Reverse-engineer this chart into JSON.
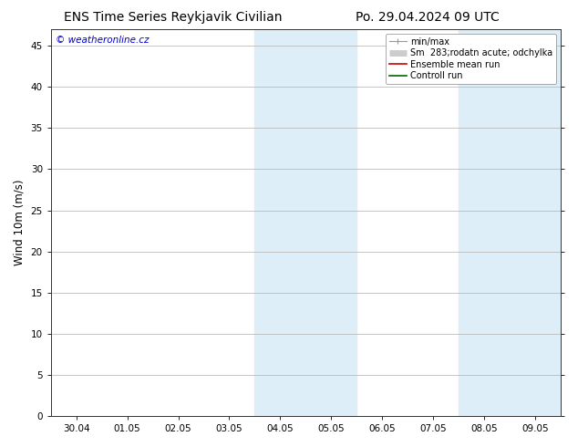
{
  "title_left": "ENS Time Series Reykjavik Civilian",
  "title_right": "Po. 29.04.2024 09 UTC",
  "ylabel": "Wind 10m (m/s)",
  "watermark": "© weatheronline.cz",
  "watermark_color": "#0000cc",
  "ylim": [
    0,
    47
  ],
  "yticks": [
    0,
    5,
    10,
    15,
    20,
    25,
    30,
    35,
    40,
    45
  ],
  "xtick_labels": [
    "30.04",
    "01.05",
    "02.05",
    "03.05",
    "04.05",
    "05.05",
    "06.05",
    "07.05",
    "08.05",
    "09.05"
  ],
  "shaded_regions": [
    {
      "xstart": 4.0,
      "xend": 6.0,
      "color": "#ddeef8"
    },
    {
      "xstart": 8.0,
      "xend": 10.0,
      "color": "#ddeef8"
    }
  ],
  "legend_entries": [
    {
      "label": "min/max",
      "color": "#aaaaaa",
      "lw": 1.0
    },
    {
      "label": "Sm  283;rodatn acute; odchylka",
      "color": "#cccccc",
      "lw": 5
    },
    {
      "label": "Ensemble mean run",
      "color": "#cc0000",
      "lw": 1.2
    },
    {
      "label": "Controll run",
      "color": "#006600",
      "lw": 1.2
    }
  ],
  "bg_color": "#ffffff",
  "plot_bg_color": "#ffffff",
  "grid_color": "#bbbbbb",
  "title_fontsize": 10,
  "axis_fontsize": 8.5,
  "tick_fontsize": 7.5,
  "legend_fontsize": 7.0
}
